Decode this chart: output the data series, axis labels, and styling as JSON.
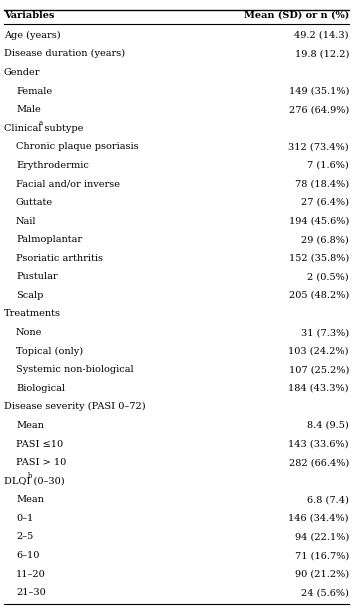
{
  "col_headers": [
    "Variables",
    "Mean (SD) or n (%)"
  ],
  "rows": [
    {
      "label": "Age (years)",
      "value": "49.2 (14.3)",
      "indent": 0,
      "is_section": false
    },
    {
      "label": "Disease duration (years)",
      "value": "19.8 (12.2)",
      "indent": 0,
      "is_section": false
    },
    {
      "label": "Gender",
      "value": "",
      "indent": 0,
      "is_section": true
    },
    {
      "label": "Female",
      "value": "149 (35.1%)",
      "indent": 1,
      "is_section": false
    },
    {
      "label": "Male",
      "value": "276 (64.9%)",
      "indent": 1,
      "is_section": false
    },
    {
      "label": "Clinical subtype",
      "value": "",
      "indent": 0,
      "is_section": true,
      "sup": "a"
    },
    {
      "label": "Chronic plaque psoriasis",
      "value": "312 (73.4%)",
      "indent": 1,
      "is_section": false
    },
    {
      "label": "Erythrodermic",
      "value": "7 (1.6%)",
      "indent": 1,
      "is_section": false
    },
    {
      "label": "Facial and/or inverse",
      "value": "78 (18.4%)",
      "indent": 1,
      "is_section": false
    },
    {
      "label": "Guttate",
      "value": "27 (6.4%)",
      "indent": 1,
      "is_section": false
    },
    {
      "label": "Nail",
      "value": "194 (45.6%)",
      "indent": 1,
      "is_section": false
    },
    {
      "label": "Palmoplantar",
      "value": "29 (6.8%)",
      "indent": 1,
      "is_section": false
    },
    {
      "label": "Psoriatic arthritis",
      "value": "152 (35.8%)",
      "indent": 1,
      "is_section": false
    },
    {
      "label": "Pustular",
      "value": "2 (0.5%)",
      "indent": 1,
      "is_section": false
    },
    {
      "label": "Scalp",
      "value": "205 (48.2%)",
      "indent": 1,
      "is_section": false
    },
    {
      "label": "Treatments",
      "value": "",
      "indent": 0,
      "is_section": true
    },
    {
      "label": "None",
      "value": "31 (7.3%)",
      "indent": 1,
      "is_section": false
    },
    {
      "label": "Topical (only)",
      "value": "103 (24.2%)",
      "indent": 1,
      "is_section": false
    },
    {
      "label": "Systemic non-biological",
      "value": "107 (25.2%)",
      "indent": 1,
      "is_section": false
    },
    {
      "label": "Biological",
      "value": "184 (43.3%)",
      "indent": 1,
      "is_section": false
    },
    {
      "label": "Disease severity (PASI 0–72)",
      "value": "",
      "indent": 0,
      "is_section": true
    },
    {
      "label": "Mean",
      "value": "8.4 (9.5)",
      "indent": 1,
      "is_section": false
    },
    {
      "label": "PASI ≤10",
      "value": "143 (33.6%)",
      "indent": 1,
      "is_section": false
    },
    {
      "label": "PASI > 10",
      "value": "282 (66.4%)",
      "indent": 1,
      "is_section": false
    },
    {
      "label": "DLQI (0–30)",
      "value": "",
      "indent": 0,
      "is_section": true,
      "sup": "b"
    },
    {
      "label": "Mean",
      "value": "6.8 (7.4)",
      "indent": 1,
      "is_section": false
    },
    {
      "label": "0–1",
      "value": "146 (34.4%)",
      "indent": 1,
      "is_section": false
    },
    {
      "label": "2–5",
      "value": "94 (22.1%)",
      "indent": 1,
      "is_section": false
    },
    {
      "label": "6–10",
      "value": "71 (16.7%)",
      "indent": 1,
      "is_section": false
    },
    {
      "label": "11–20",
      "value": "90 (21.2%)",
      "indent": 1,
      "is_section": false
    },
    {
      "label": "21–30",
      "value": "24 (5.6%)",
      "indent": 1,
      "is_section": false
    }
  ],
  "bg_color": "#ffffff",
  "text_color": "#000000",
  "line_color": "#000000",
  "font_size": 7.0,
  "indent_size": 0.03
}
